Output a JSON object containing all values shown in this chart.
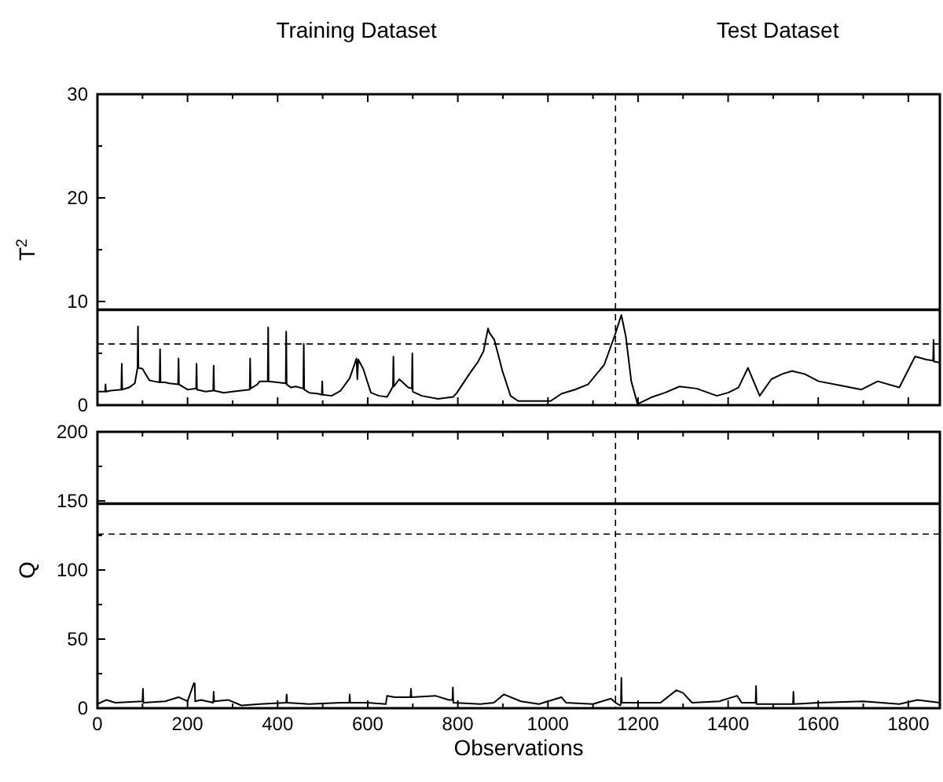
{
  "chart_data": [
    {
      "type": "line",
      "ylabel": "T$^{2}$",
      "xlim": [
        0,
        1870
      ],
      "ylim": [
        0,
        30
      ],
      "xticks": [
        0,
        {
          "value": 100,
          "label": null
        },
        200,
        {
          "value": 300,
          "label": null
        },
        400,
        {
          "value": 500,
          "label": null
        },
        600,
        {
          "value": 700,
          "label": null
        },
        800,
        {
          "value": 900,
          "label": null
        },
        1000,
        {
          "value": 1100,
          "label": null
        },
        1200,
        {
          "value": 1300,
          "label": null
        },
        1400,
        {
          "value": 1500,
          "label": null
        },
        1600,
        {
          "value": 1700,
          "label": null
        },
        1800
      ],
      "yticks": [
        0,
        {
          "value": 5,
          "label": null
        },
        10,
        {
          "value": 15,
          "label": null
        },
        20,
        {
          "value": 25,
          "label": null
        },
        30
      ],
      "tick_labels": "y",
      "grid": false,
      "marker": "none",
      "line_style": "solid",
      "annotations": [
        "Training Dataset",
        "Test Dataset"
      ],
      "ref_lines": [
        {
          "axis": "y",
          "value": 9.2,
          "line_style": "solid"
        },
        {
          "axis": "y",
          "value": 5.9,
          "line_style": "dashed"
        },
        {
          "axis": "x",
          "value": 1150,
          "line_style": "dashed"
        }
      ],
      "series": [
        {
          "color": "#000000",
          "x": [
            0,
            17,
            18,
            19,
            30,
            53,
            54,
            55,
            70,
            83,
            89,
            90,
            91,
            100,
            115,
            125,
            138,
            139,
            140,
            150,
            160,
            179,
            180,
            181,
            200,
            219,
            220,
            221,
            240,
            257,
            258,
            259,
            280,
            300,
            338,
            339,
            340,
            355,
            360,
            378,
            379,
            380,
            400,
            418,
            419,
            420,
            430,
            440,
            457,
            458,
            459,
            470,
            490,
            498,
            499,
            500,
            520,
            540,
            560,
            575,
            577,
            579,
            590,
            607,
            625,
            643,
            656,
            657,
            658,
            670,
            690,
            698,
            699,
            700,
            720,
            756,
            790,
            798,
            827,
            845,
            857,
            867,
            870,
            881,
            899,
            917,
            934,
            970,
            1006,
            1030,
            1060,
            1089,
            1125,
            1149,
            1163,
            1173,
            1185,
            1199,
            1232,
            1260,
            1292,
            1330,
            1375,
            1400,
            1423,
            1444,
            1470,
            1496,
            1520,
            1542,
            1570,
            1601,
            1650,
            1696,
            1732,
            1780,
            1815,
            1840,
            1855,
            1856,
            1857,
            1870
          ],
          "values": [
            1.3,
            1.3,
            2.0,
            1.3,
            1.4,
            1.5,
            4.0,
            1.5,
            1.7,
            2.1,
            3.6,
            7.6,
            3.6,
            3.5,
            2.4,
            2.3,
            2.2,
            5.4,
            2.2,
            2.2,
            2.1,
            2.0,
            4.5,
            2.0,
            1.5,
            1.6,
            4.0,
            1.5,
            1.3,
            1.4,
            3.8,
            1.4,
            1.2,
            1.3,
            1.5,
            4.5,
            1.6,
            2.0,
            2.3,
            2.3,
            7.5,
            2.3,
            2.2,
            2.1,
            7.1,
            2.0,
            1.7,
            1.8,
            1.6,
            5.9,
            1.5,
            1.2,
            1.1,
            1.0,
            2.3,
            1.0,
            0.9,
            1.4,
            2.6,
            4.5,
            2.5,
            4.4,
            3.5,
            1.2,
            0.9,
            0.8,
            1.8,
            4.7,
            1.8,
            2.5,
            1.7,
            1.6,
            5.0,
            1.3,
            0.9,
            0.6,
            0.8,
            1.2,
            3.1,
            4.2,
            5.2,
            7.4,
            7.0,
            6.3,
            3.3,
            0.9,
            0.4,
            0.4,
            0.4,
            1.1,
            1.5,
            2.0,
            3.9,
            6.8,
            8.7,
            6.6,
            2.3,
            0.1,
            0.8,
            1.2,
            1.8,
            1.6,
            0.9,
            1.2,
            1.7,
            3.6,
            0.9,
            2.5,
            3.0,
            3.3,
            3.0,
            2.3,
            1.9,
            1.5,
            2.3,
            1.7,
            4.7,
            4.4,
            4.3,
            6.3,
            4.2,
            4.1
          ]
        }
      ]
    },
    {
      "type": "line",
      "xlabel": "Observations",
      "ylabel": "Q",
      "xlim": [
        0,
        1870
      ],
      "ylim": [
        0,
        200
      ],
      "xticks": [
        0,
        {
          "value": 100,
          "label": null
        },
        200,
        {
          "value": 300,
          "label": null
        },
        400,
        {
          "value": 500,
          "label": null
        },
        600,
        {
          "value": 700,
          "label": null
        },
        800,
        {
          "value": 900,
          "label": null
        },
        1000,
        {
          "value": 1100,
          "label": null
        },
        1200,
        {
          "value": 1300,
          "label": null
        },
        1400,
        {
          "value": 1500,
          "label": null
        },
        1600,
        {
          "value": 1700,
          "label": null
        },
        1800
      ],
      "yticks": [
        0,
        {
          "value": 25,
          "label": null
        },
        50,
        {
          "value": 75,
          "label": null
        },
        100,
        {
          "value": 125,
          "label": null
        },
        150,
        {
          "value": 175,
          "label": null
        },
        200
      ],
      "grid": false,
      "marker": "none",
      "line_style": "solid",
      "ref_lines": [
        {
          "axis": "y",
          "value": 148,
          "line_style": "solid"
        },
        {
          "axis": "y",
          "value": 126,
          "line_style": "dashed"
        },
        {
          "axis": "x",
          "value": 1150,
          "line_style": "dashed"
        }
      ],
      "series": [
        {
          "color": "#000000",
          "x": [
            0,
            20,
            40,
            100,
            101,
            102,
            150,
            180,
            200,
            214,
            215,
            216,
            217,
            230,
            257,
            258,
            259,
            290,
            320,
            360,
            419,
            420,
            421,
            470,
            540,
            559,
            560,
            561,
            600,
            640,
            643,
            660,
            690,
            695,
            696,
            697,
            750,
            780,
            788,
            789,
            790,
            850,
            880,
            902,
            940,
            980,
            1030,
            1040,
            1100,
            1140,
            1150,
            1160,
            1162,
            1163,
            1164,
            1250,
            1285,
            1300,
            1320,
            1380,
            1420,
            1430,
            1461,
            1462,
            1463,
            1540,
            1544,
            1545,
            1546,
            1600,
            1700,
            1780,
            1820,
            1870
          ],
          "values": [
            3,
            6,
            4,
            5,
            14,
            4,
            5,
            8,
            5,
            18,
            18,
            18,
            5,
            6,
            4,
            12,
            5,
            6,
            2,
            3,
            4,
            10,
            4,
            3,
            4,
            4,
            10,
            4,
            4,
            3,
            9,
            8,
            8,
            8,
            14,
            8,
            9,
            6,
            6,
            15,
            4,
            3,
            4,
            10,
            5,
            3,
            8,
            4,
            3,
            7,
            4,
            2,
            3,
            22,
            4,
            4,
            13,
            11,
            4,
            5,
            9,
            4,
            4,
            16,
            3,
            3,
            3,
            12,
            3,
            4,
            5,
            3,
            6,
            4
          ]
        }
      ]
    }
  ]
}
